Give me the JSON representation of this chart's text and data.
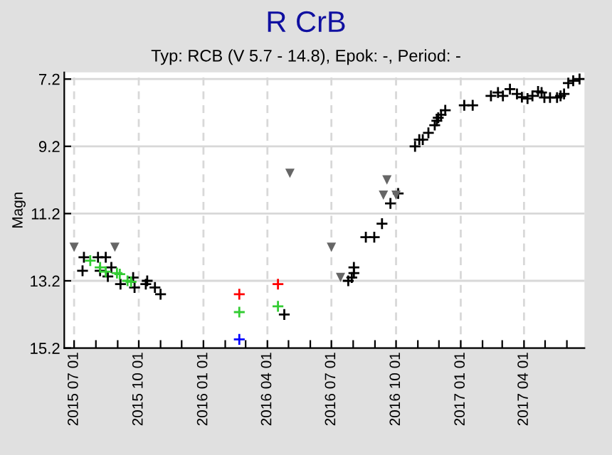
{
  "chart_data": {
    "type": "scatter",
    "title": "R CrB",
    "subtitle": "Typ: RCB (V 5.7 - 14.8), Epok: -, Period: -",
    "ylabel": "Magn",
    "xlim": [
      "2015-06-17",
      "2017-06-26"
    ],
    "ylim": [
      15.2,
      7.0
    ],
    "yticks": [
      7.2,
      9.2,
      11.2,
      13.2,
      15.2
    ],
    "xticks": [
      {
        "value": "2015-07-01",
        "label": "2015 07 01"
      },
      {
        "value": "2015-08-01",
        "label": null
      },
      {
        "value": "2015-09-01",
        "label": null
      },
      {
        "value": "2015-10-01",
        "label": "2015 10 01"
      },
      {
        "value": "2015-11-01",
        "label": null
      },
      {
        "value": "2015-12-01",
        "label": null
      },
      {
        "value": "2016-01-01",
        "label": "2016 01 01"
      },
      {
        "value": "2016-02-01",
        "label": null
      },
      {
        "value": "2016-03-01",
        "label": null
      },
      {
        "value": "2016-04-01",
        "label": "2016 04 01"
      },
      {
        "value": "2016-05-01",
        "label": null
      },
      {
        "value": "2016-06-01",
        "label": null
      },
      {
        "value": "2016-07-01",
        "label": "2016 07 01"
      },
      {
        "value": "2016-08-01",
        "label": null
      },
      {
        "value": "2016-09-01",
        "label": null
      },
      {
        "value": "2016-10-01",
        "label": "2016 10 01"
      },
      {
        "value": "2016-11-01",
        "label": null
      },
      {
        "value": "2016-12-01",
        "label": null
      },
      {
        "value": "2017-01-01",
        "label": "2017 01 01"
      },
      {
        "value": "2017-02-01",
        "label": null
      },
      {
        "value": "2017-03-01",
        "label": null
      },
      {
        "value": "2017-04-01",
        "label": "2017 04 01"
      },
      {
        "value": "2017-05-01",
        "label": null
      },
      {
        "value": "2017-06-01",
        "label": null
      }
    ],
    "grid": true,
    "legend": false,
    "series": [
      {
        "color": "#000000",
        "marker": "cross",
        "x": [
          "2015-07-13",
          "2015-07-15",
          "2015-08-04",
          "2015-08-07",
          "2015-08-13",
          "2015-08-15",
          "2015-08-18",
          "2015-08-23",
          "2015-09-05",
          "2015-09-16",
          "2015-09-23",
          "2015-09-25",
          "2015-10-11",
          "2015-10-13",
          "2015-10-24",
          "2015-11-01",
          "2016-04-25",
          "2016-07-25",
          "2016-07-30",
          "2016-08-02",
          "2016-08-02",
          "2016-08-19",
          "2016-08-31",
          "2016-09-11",
          "2016-09-23",
          "2016-10-04",
          "2016-10-28",
          "2016-11-03",
          "2016-11-08",
          "2016-11-16",
          "2016-11-25",
          "2016-11-28",
          "2016-11-30",
          "2016-12-04",
          "2016-12-10",
          "2017-01-06",
          "2017-01-18",
          "2017-02-13",
          "2017-02-23",
          "2017-03-02",
          "2017-03-12",
          "2017-03-22",
          "2017-03-29",
          "2017-04-06",
          "2017-04-13",
          "2017-04-21",
          "2017-04-26",
          "2017-04-30",
          "2017-05-08",
          "2017-05-18",
          "2017-05-23",
          "2017-05-28",
          "2017-06-03",
          "2017-06-10",
          "2017-06-19"
        ],
        "values": [
          12.9,
          12.5,
          12.5,
          12.9,
          null,
          12.5,
          13.07,
          12.8,
          13.3,
          null,
          13.1,
          13.4,
          13.3,
          13.2,
          13.4,
          13.6,
          14.2,
          13.2,
          13.1,
          12.8,
          12.97,
          11.9,
          11.9,
          11.5,
          10.9,
          10.6,
          9.2,
          9.0,
          9.0,
          8.8,
          8.57,
          8.44,
          8.35,
          8.26,
          8.13,
          7.98,
          7.98,
          7.7,
          7.6,
          7.7,
          7.5,
          7.64,
          7.74,
          7.78,
          7.7,
          7.57,
          7.6,
          7.75,
          7.75,
          7.75,
          7.7,
          7.64,
          7.32,
          7.25,
          7.2
        ]
      },
      {
        "color": "#33cc33",
        "marker": "cross",
        "x": [
          "2015-07-24",
          "2015-08-07",
          "2015-08-15",
          "2015-08-31",
          "2015-09-04",
          "2015-09-15",
          "2015-09-20",
          "2016-02-21",
          "2016-04-16"
        ],
        "values": [
          12.6,
          12.8,
          12.93,
          12.97,
          13.0,
          13.2,
          13.23,
          14.13,
          13.96
        ]
      },
      {
        "color": "#ff0000",
        "marker": "cross",
        "x": [
          "2016-02-21",
          "2016-04-16"
        ],
        "values": [
          13.6,
          13.3
        ]
      },
      {
        "color": "#0000ff",
        "marker": "cross",
        "x": [
          "2016-02-21"
        ],
        "values": [
          14.94
        ]
      },
      {
        "color": "#666666",
        "marker": "triangle",
        "x": [
          "2015-07-01",
          "2015-08-28",
          "2016-05-03",
          "2016-07-01",
          "2016-07-14",
          "2016-09-13",
          "2016-09-18",
          "2016-10-01"
        ],
        "values": [
          12.2,
          12.2,
          10.0,
          12.2,
          13.1,
          10.65,
          10.2,
          10.65
        ]
      }
    ]
  }
}
